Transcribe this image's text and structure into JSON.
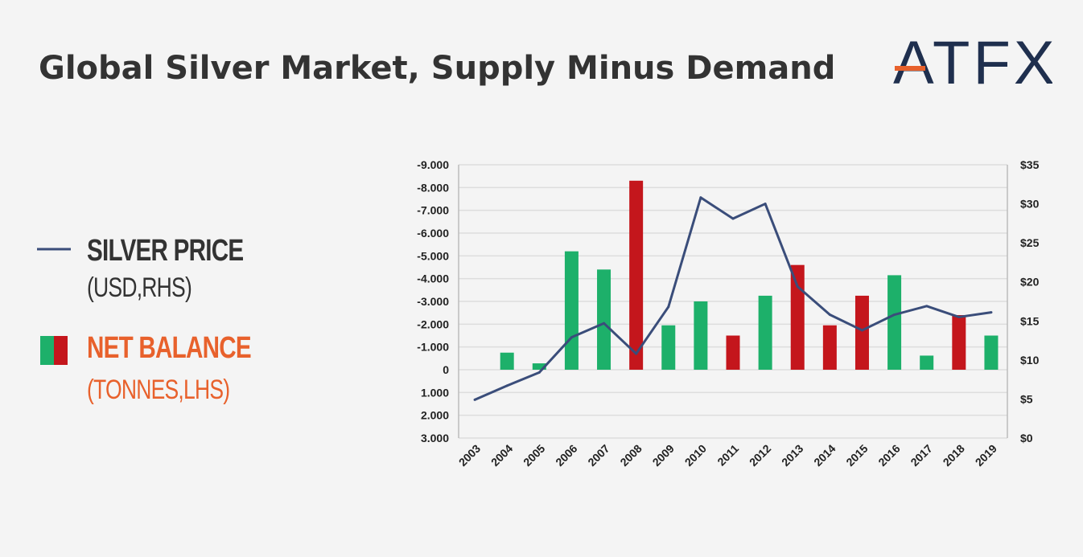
{
  "title": "Global Silver Market, Supply Minus Demand",
  "logo": {
    "text": "ATFX",
    "color": "#1f2f4e",
    "accent": "#e8612c"
  },
  "legend": [
    {
      "name": "SILVER PRICE",
      "unit": "(USD,RHS)",
      "color": "#333333",
      "swatch": "line",
      "swatch_color": "#3a4d7a"
    },
    {
      "name": "NET BALANCE",
      "unit": "(TONNES,LHS)",
      "color": "#e8612c",
      "swatch": "bar",
      "swatch_colors": [
        "#1db06a",
        "#c4161c"
      ]
    }
  ],
  "colors": {
    "surplus": "#1db06a",
    "deficit": "#c4161c",
    "price_line": "#3a4d7a",
    "grid": "#dddddd"
  },
  "chart_data": {
    "type": "bar",
    "categories": [
      "2003",
      "2004",
      "2005",
      "2006",
      "2007",
      "2008",
      "2009",
      "2010",
      "2011",
      "2012",
      "2013",
      "2014",
      "2015",
      "2016",
      "2017",
      "2018",
      "2019"
    ],
    "series": [
      {
        "axis": "left",
        "type": "bar",
        "values": [
          0,
          -750,
          -280,
          -5200,
          -4400,
          -8300,
          -1950,
          -3000,
          -1500,
          -3250,
          -4600,
          -1950,
          -3250,
          -4150,
          -620,
          -2400,
          -1500
        ],
        "colors": [
          "surplus",
          "surplus",
          "surplus",
          "surplus",
          "surplus",
          "deficit",
          "surplus",
          "surplus",
          "deficit",
          "surplus",
          "deficit",
          "deficit",
          "deficit",
          "surplus",
          "surplus",
          "deficit",
          "surplus"
        ]
      },
      {
        "axis": "right",
        "type": "line",
        "values": [
          4.9,
          6.7,
          8.4,
          12.9,
          14.7,
          10.8,
          16.8,
          30.8,
          28.1,
          30.0,
          19.4,
          15.8,
          13.8,
          15.8,
          16.9,
          15.5,
          16.1
        ]
      }
    ],
    "left_axis": {
      "min": -9000,
      "max": 3000,
      "reversed": true,
      "ticks": [
        -9000,
        -8000,
        -7000,
        -6000,
        -5000,
        -4000,
        -3000,
        -2000,
        -1000,
        0,
        1000,
        2000,
        3000
      ],
      "tick_labels": [
        "-9.000",
        "-8.000",
        "-7.000",
        "-6.000",
        "-5.000",
        "-4.000",
        "-3.000",
        "-2.000",
        "-1.000",
        "0",
        "1.000",
        "2.000",
        "3.000"
      ]
    },
    "right_axis": {
      "min": 0,
      "max": 35,
      "ticks": [
        0,
        5,
        10,
        15,
        20,
        25,
        30,
        35
      ],
      "tick_labels": [
        "$0",
        "$5",
        "$10",
        "$15",
        "$20",
        "$25",
        "$30",
        "$35"
      ]
    },
    "grid": true
  }
}
